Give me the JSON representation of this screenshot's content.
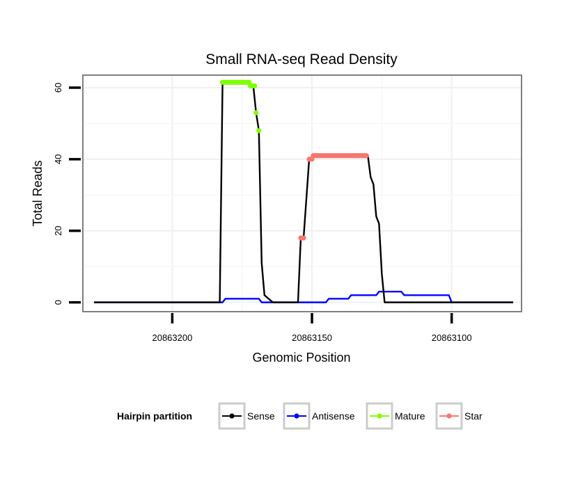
{
  "chart_data": {
    "type": "line",
    "title": "Small RNA-seq Read Density",
    "xlabel": "Genomic Position",
    "ylabel": "Total Reads",
    "xlim": [
      20863232,
      20863075
    ],
    "ylim": [
      -2.6,
      63.5
    ],
    "x_reversed": true,
    "x_ticks": [
      20863200,
      20863150,
      20863100
    ],
    "x_tick_labels": [
      "20863200",
      "20863150",
      "20863100"
    ],
    "y_ticks": [
      0,
      20,
      40,
      60
    ],
    "y_tick_labels": [
      "0",
      "20",
      "40",
      "60"
    ],
    "grid": true,
    "legend": {
      "title": "Hairpin partition",
      "placement": "bottom",
      "entries": [
        {
          "name": "Sense",
          "color": "#000000"
        },
        {
          "name": "Antisense",
          "color": "#0000ff"
        },
        {
          "name": "Mature",
          "color": "#7fff00"
        },
        {
          "name": "Star",
          "color": "#f8766d"
        }
      ]
    },
    "series": [
      {
        "name": "Sense",
        "color": "#000000",
        "style": "line",
        "x": [
          20863228,
          20863183,
          20863182,
          20863173,
          20863172,
          20863171,
          20863170,
          20863169,
          20863168,
          20863167,
          20863164,
          20863155,
          20863154,
          20863153,
          20863151,
          20863150,
          20863149,
          20863148,
          20863147,
          20863146,
          20863145,
          20863144,
          20863143,
          20863130,
          20863129,
          20863128,
          20863127,
          20863126,
          20863125,
          20863124,
          20863123,
          20863122,
          20863078
        ],
        "y": [
          0,
          0,
          61.5,
          61.5,
          60.5,
          60.5,
          53,
          48,
          11,
          2,
          0,
          0,
          18,
          18,
          40,
          40,
          41,
          41,
          41,
          41,
          41,
          41,
          41,
          41,
          35,
          33,
          24,
          22,
          8,
          0,
          0,
          0,
          0
        ]
      },
      {
        "name": "Antisense",
        "color": "#0000ff",
        "style": "line",
        "x": [
          20863228,
          20863182,
          20863181,
          20863169,
          20863168,
          20863145,
          20863144,
          20863137,
          20863136,
          20863127,
          20863126,
          20863118,
          20863117,
          20863111,
          20863110,
          20863101,
          20863100,
          20863078
        ],
        "y": [
          0,
          0,
          1,
          1,
          0,
          0,
          1,
          1,
          2,
          2,
          3,
          3,
          2,
          2,
          2,
          2,
          0,
          0
        ]
      },
      {
        "name": "Mature",
        "color": "#7fff00",
        "style": "points",
        "x": [
          20863182,
          20863181.5,
          20863181,
          20863180.5,
          20863180,
          20863179.5,
          20863179,
          20863178.5,
          20863178,
          20863177.5,
          20863177,
          20863176.5,
          20863176,
          20863175.5,
          20863175,
          20863174.5,
          20863174,
          20863173.5,
          20863173,
          20863172.5,
          20863172,
          20863171.5,
          20863171,
          20863170.5,
          20863170,
          20863169
        ],
        "y": [
          61.5,
          61.5,
          61.5,
          61.5,
          61.5,
          61.5,
          61.5,
          61.5,
          61.5,
          61.5,
          61.5,
          61.5,
          61.5,
          61.5,
          61.5,
          61.5,
          61.5,
          61.5,
          61.5,
          61.5,
          60.5,
          60.5,
          60.5,
          60.5,
          53,
          48
        ]
      },
      {
        "name": "Star",
        "color": "#f8766d",
        "style": "points",
        "x": [
          20863154,
          20863153.5,
          20863153,
          20863151,
          20863150.5,
          20863150,
          20863149.5,
          20863149,
          20863148.5,
          20863148,
          20863147.5,
          20863147,
          20863146.5,
          20863146,
          20863145.5,
          20863145,
          20863144.5,
          20863144,
          20863143.5,
          20863143,
          20863142.5,
          20863142,
          20863141.5,
          20863141,
          20863140.5,
          20863140,
          20863139.5,
          20863139,
          20863138.5,
          20863138,
          20863137.5,
          20863137,
          20863136.5,
          20863136,
          20863135.5,
          20863135,
          20863134.5,
          20863134,
          20863133.5,
          20863133,
          20863132.5,
          20863132,
          20863131.5,
          20863131,
          20863130.5
        ],
        "y": [
          18,
          18,
          18,
          40,
          40,
          40,
          41,
          41,
          41,
          41,
          41,
          41,
          41,
          41,
          41,
          41,
          41,
          41,
          41,
          41,
          41,
          41,
          41,
          41,
          41,
          41,
          41,
          41,
          41,
          41,
          41,
          41,
          41,
          41,
          41,
          41,
          41,
          41,
          41,
          41,
          41,
          41,
          41,
          41,
          41
        ]
      }
    ]
  }
}
